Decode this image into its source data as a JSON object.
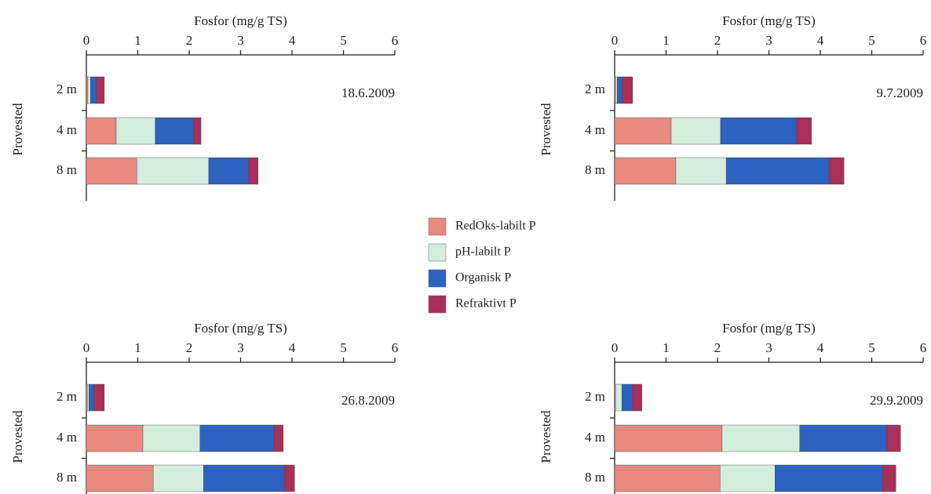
{
  "chart_data": [
    {
      "type": "bar",
      "orientation": "horizontal",
      "stacked": true,
      "title": "Fosfor (mg/g TS)",
      "y_label": "Provested",
      "annotation": "18.6.2009",
      "categories": [
        "2 m",
        "4 m",
        "8 m"
      ],
      "xlim": [
        0,
        6
      ],
      "xticks": [
        0,
        1,
        2,
        3,
        4,
        5,
        6
      ],
      "series": [
        {
          "name": "RedOks-labilt P",
          "color": "#e88a80",
          "values": [
            0.03,
            0.58,
            0.98
          ]
        },
        {
          "name": "pH-labilt P",
          "color": "#d4eedd",
          "values": [
            0.05,
            0.76,
            1.4
          ]
        },
        {
          "name": "Organisk P",
          "color": "#2e62c0",
          "values": [
            0.12,
            0.75,
            0.78
          ]
        },
        {
          "name": "Refraktivt P",
          "color": "#a8305a",
          "values": [
            0.15,
            0.14,
            0.18
          ]
        }
      ]
    },
    {
      "type": "bar",
      "orientation": "horizontal",
      "stacked": true,
      "title": "Fosfor (mg/g TS)",
      "y_label": "Provested",
      "annotation": "9.7.2009",
      "categories": [
        "2 m",
        "4 m",
        "8 m"
      ],
      "xlim": [
        0,
        6
      ],
      "xticks": [
        0,
        1,
        2,
        3,
        4,
        5,
        6
      ],
      "series": [
        {
          "name": "RedOks-labilt P",
          "color": "#e88a80",
          "values": [
            0.02,
            1.1,
            1.19
          ]
        },
        {
          "name": "pH-labilt P",
          "color": "#d4eedd",
          "values": [
            0.03,
            0.96,
            0.98
          ]
        },
        {
          "name": "Organisk P",
          "color": "#2e62c0",
          "values": [
            0.1,
            1.48,
            2.0
          ]
        },
        {
          "name": "Refraktivt P",
          "color": "#a8305a",
          "values": [
            0.2,
            0.29,
            0.29
          ]
        }
      ]
    },
    {
      "type": "bar",
      "orientation": "horizontal",
      "stacked": true,
      "title": "Fosfor (mg/g TS)",
      "y_label": "Provested",
      "annotation": "26.8.2009",
      "categories": [
        "2 m",
        "4 m",
        "8 m"
      ],
      "xlim": [
        0,
        6
      ],
      "xticks": [
        0,
        1,
        2,
        3,
        4,
        5,
        6
      ],
      "series": [
        {
          "name": "RedOks-labilt P",
          "color": "#e88a80",
          "values": [
            0.02,
            1.1,
            1.3
          ]
        },
        {
          "name": "pH-labilt P",
          "color": "#d4eedd",
          "values": [
            0.03,
            1.11,
            0.98
          ]
        },
        {
          "name": "Organisk P",
          "color": "#2e62c0",
          "values": [
            0.1,
            1.44,
            1.57
          ]
        },
        {
          "name": "Refraktivt P",
          "color": "#a8305a",
          "values": [
            0.2,
            0.18,
            0.2
          ]
        }
      ]
    },
    {
      "type": "bar",
      "orientation": "horizontal",
      "stacked": true,
      "title": "Fosfor (mg/g TS)",
      "y_label": "Provested",
      "annotation": "29.9.2009",
      "categories": [
        "2 m",
        "4 m",
        "8 m"
      ],
      "xlim": [
        0,
        6
      ],
      "xticks": [
        0,
        1,
        2,
        3,
        4,
        5,
        6
      ],
      "series": [
        {
          "name": "RedOks-labilt P",
          "color": "#e88a80",
          "values": [
            0.02,
            2.09,
            2.05
          ]
        },
        {
          "name": "pH-labilt P",
          "color": "#d4eedd",
          "values": [
            0.12,
            1.51,
            1.07
          ]
        },
        {
          "name": "Organisk P",
          "color": "#2e62c0",
          "values": [
            0.21,
            1.69,
            2.09
          ]
        },
        {
          "name": "Refraktivt P",
          "color": "#a8305a",
          "values": [
            0.18,
            0.27,
            0.26
          ]
        }
      ]
    }
  ]
}
